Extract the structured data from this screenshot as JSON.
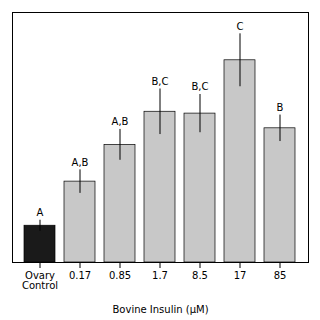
{
  "chart_data": {
    "type": "bar",
    "x_label": "Bovine Insulin (μM)",
    "categories": [
      "Ovary\nControl",
      "0.17",
      "0.85",
      "1.7",
      "8.5",
      "17",
      "85"
    ],
    "values": [
      1.0,
      2.2,
      3.2,
      4.1,
      4.05,
      5.5,
      3.65
    ],
    "errors": [
      0.15,
      0.32,
      0.42,
      0.62,
      0.52,
      0.72,
      0.36
    ],
    "colors": [
      "#1a1a1a",
      "#c8c8c8",
      "#c8c8c8",
      "#c8c8c8",
      "#c8c8c8",
      "#c8c8c8",
      "#c8c8c8"
    ],
    "annotations": [
      "A",
      "A,B",
      "A,B",
      "B,C",
      "B,C",
      "C",
      "B"
    ],
    "ylim": [
      0,
      6.8
    ],
    "tick_labels": "x",
    "grid": false
  }
}
